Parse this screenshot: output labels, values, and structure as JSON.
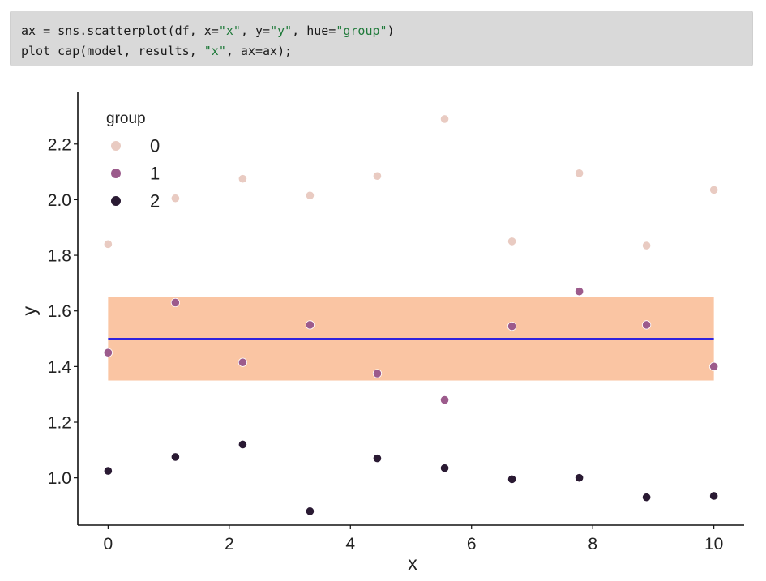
{
  "code": {
    "lines": [
      [
        {
          "t": "ax = sns.scatterplot(df, x=",
          "s": false
        },
        {
          "t": "\"x\"",
          "s": true
        },
        {
          "t": ", y=",
          "s": false
        },
        {
          "t": "\"y\"",
          "s": true
        },
        {
          "t": ", hue=",
          "s": false
        },
        {
          "t": "\"group\"",
          "s": true
        },
        {
          "t": ")",
          "s": false
        }
      ],
      [
        {
          "t": "plot_cap(model, results, ",
          "s": false
        },
        {
          "t": "\"x\"",
          "s": true
        },
        {
          "t": ", ax=ax);",
          "s": false
        }
      ]
    ]
  },
  "chart_data": {
    "type": "scatter",
    "title": "",
    "xlabel": "x",
    "ylabel": "y",
    "xlim": [
      -0.5,
      10.5
    ],
    "ylim": [
      0.83,
      2.38
    ],
    "xticks": [
      0,
      2,
      4,
      6,
      8,
      10
    ],
    "xtick_labels": [
      "0",
      "2",
      "4",
      "6",
      "8",
      "10"
    ],
    "yticks": [
      1.0,
      1.2,
      1.4,
      1.6,
      1.8,
      2.0,
      2.2
    ],
    "ytick_labels": [
      "1.0",
      "1.2",
      "1.4",
      "1.6",
      "1.8",
      "2.0",
      "2.2"
    ],
    "grid": false,
    "legend": {
      "title": "group",
      "placement": "top-left",
      "entries": [
        "0",
        "1",
        "2"
      ]
    },
    "colors": {
      "group_0": "#e9cbc2",
      "group_1": "#9c5b8c",
      "group_2": "#2a1a33",
      "band_fill": "#f7a26a",
      "band_opacity": 0.62,
      "mean_line": "#2f22dd"
    },
    "series": [
      {
        "name": "0",
        "x": [
          0,
          1.111,
          2.222,
          3.333,
          4.444,
          5.556,
          6.667,
          7.778,
          8.889,
          10
        ],
        "y": [
          1.84,
          2.005,
          2.075,
          2.015,
          2.085,
          2.29,
          1.85,
          2.095,
          1.835,
          2.035
        ]
      },
      {
        "name": "1",
        "x": [
          0,
          1.111,
          2.222,
          3.333,
          4.444,
          5.556,
          6.667,
          7.778,
          8.889,
          10
        ],
        "y": [
          1.45,
          1.63,
          1.415,
          1.55,
          1.375,
          1.28,
          1.545,
          1.67,
          1.55,
          1.4
        ]
      },
      {
        "name": "2",
        "x": [
          0,
          1.111,
          2.222,
          3.333,
          4.444,
          5.556,
          6.667,
          7.778,
          8.889,
          10
        ],
        "y": [
          1.025,
          1.075,
          1.12,
          0.88,
          1.07,
          1.035,
          0.995,
          1.0,
          0.93,
          0.935
        ]
      }
    ],
    "cap": {
      "x": [
        0,
        10
      ],
      "mean": 1.5,
      "lower": 1.35,
      "upper": 1.65
    }
  }
}
